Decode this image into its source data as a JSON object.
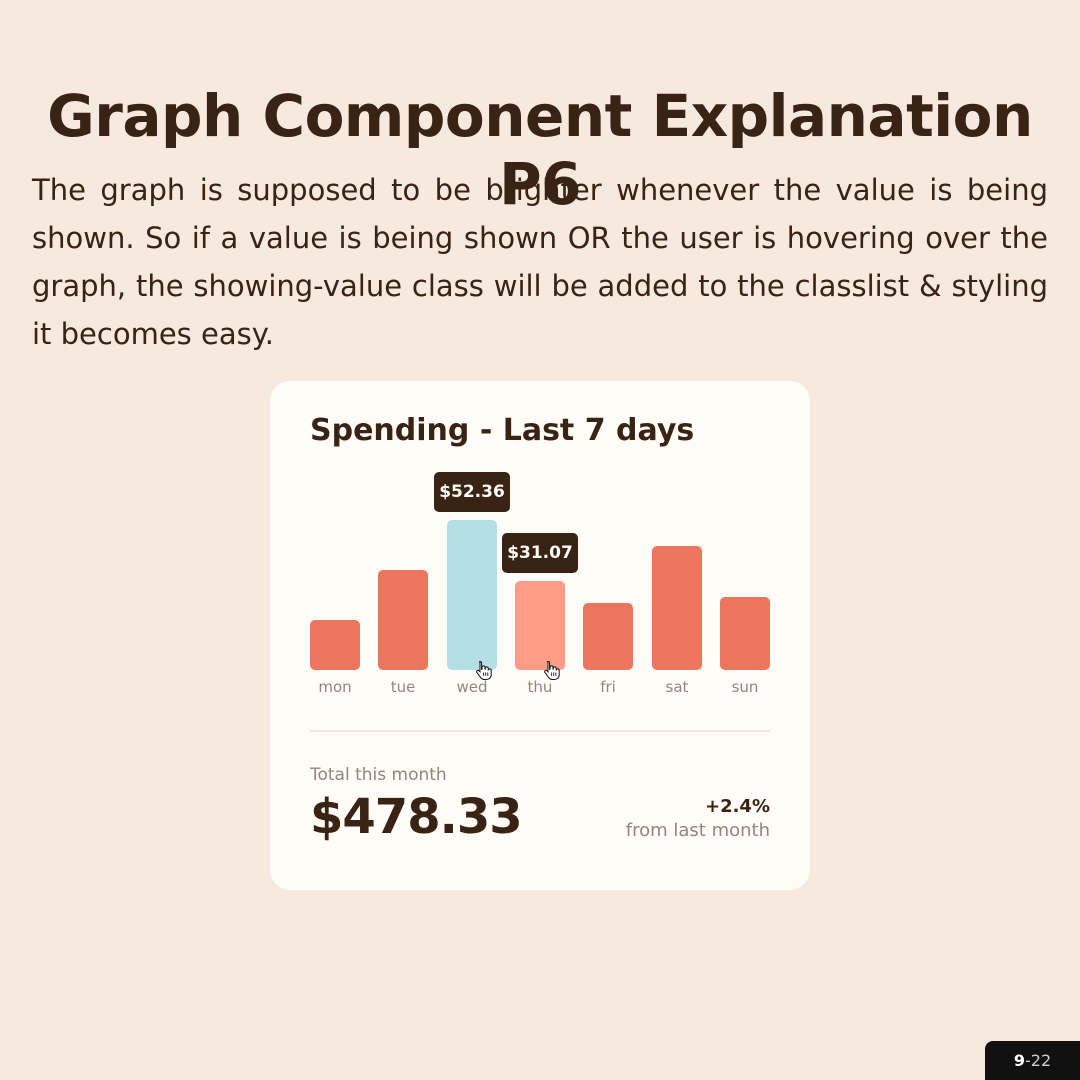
{
  "slide": {
    "title": "Graph Component Explanation P6",
    "description": "The graph is supposed to be brighter whenever the value is being shown. So if a value is being shown OR the user is hovering over the graph, the showing-value class will be added to the classlist & styling it becomes easy.",
    "page": {
      "current": "9",
      "rest": "-22"
    }
  },
  "card": {
    "title": "Spending - Last 7 days",
    "total_label": "Total this month",
    "total_value": "$478.33",
    "change": "+2.4%",
    "change_label": "from last month"
  },
  "chart_data": {
    "type": "bar",
    "categories": [
      "mon",
      "tue",
      "wed",
      "thu",
      "fri",
      "sat",
      "sun"
    ],
    "values": [
      17.45,
      34.91,
      52.36,
      31.07,
      23.39,
      43.28,
      25.48
    ],
    "ylim": [
      0,
      52.36
    ],
    "shown_labels": {
      "wed": "$52.36",
      "thu": "$31.07"
    },
    "highlight_color": "#b4dfe5",
    "bar_color": "#ec755d",
    "showing_value_color": "#ff9b87"
  }
}
